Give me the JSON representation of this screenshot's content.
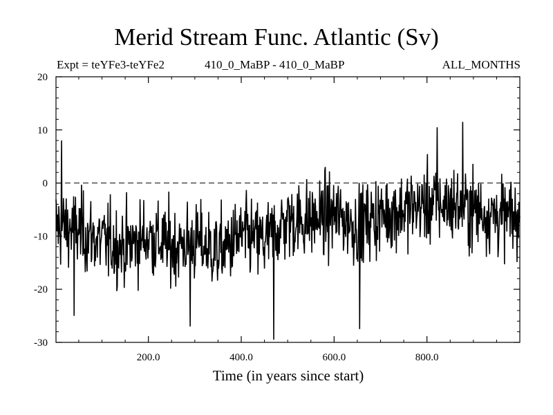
{
  "chart_data": {
    "type": "line",
    "title": "Merid Stream Func. Atlantic (Sv)",
    "subtitle_left": "Expt = teYFe3-teYFe2",
    "subtitle_center": "410_0_MaBP - 410_0_MaBP",
    "subtitle_right": "ALL_MONTHS",
    "xlabel": "Time (in years since start)",
    "ylabel": "",
    "xlim": [
      1,
      1000
    ],
    "ylim": [
      -30,
      20
    ],
    "x_ticks": [
      200,
      400,
      600,
      800
    ],
    "x_tick_labels": [
      "200.0",
      "400.0",
      "600.0",
      "800.0"
    ],
    "y_ticks": [
      -30,
      -20,
      -10,
      0,
      10,
      20
    ],
    "y_tick_labels": [
      "-30",
      "-20",
      "-10",
      "0",
      "10",
      "20"
    ],
    "reference_line": {
      "y": 0,
      "style": "dashed"
    },
    "series": [
      {
        "name": "Merid Stream Func. Atlantic",
        "x": [
          1,
          50,
          100,
          150,
          200,
          250,
          300,
          350,
          400,
          450,
          500,
          550,
          600,
          650,
          700,
          750,
          800,
          850,
          900,
          950,
          1000
        ],
        "values": [
          -8,
          -9,
          -11,
          -12,
          -10,
          -12,
          -11,
          -13,
          -10,
          -11,
          -7,
          -7,
          -6,
          -8,
          -6,
          -5,
          -4,
          -4,
          -5,
          -6,
          -7
        ]
      }
    ],
    "annotated_extremes": [
      {
        "x": 13,
        "y": 8
      },
      {
        "x": 40,
        "y": -25
      },
      {
        "x": 290,
        "y": -27
      },
      {
        "x": 470,
        "y": -29.5
      },
      {
        "x": 655,
        "y": -27.5
      },
      {
        "x": 822,
        "y": 10.5
      },
      {
        "x": 877,
        "y": 11.5
      }
    ]
  }
}
